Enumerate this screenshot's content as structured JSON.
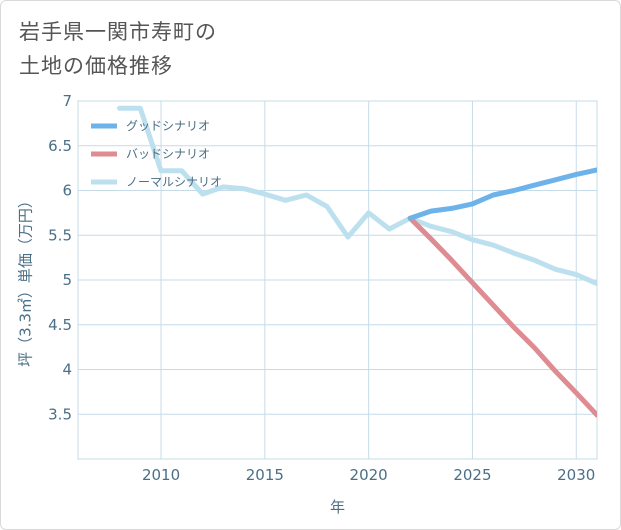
{
  "title_lines": [
    "岩手県一関市寿町の",
    "土地の価格推移"
  ],
  "colors": {
    "good": "#6db3ea",
    "bad": "#de8b91",
    "normal": "#bde0ef",
    "grid": "#c6dbe8",
    "axis_text": "#4a6f86"
  },
  "chart_data": {
    "type": "line",
    "title": "岩手県一関市寿町の土地の価格推移",
    "xlabel": "年",
    "ylabel": "坪（3.3㎡）単価（万円）",
    "xlim": [
      2006,
      2031
    ],
    "ylim": [
      3,
      7
    ],
    "x_ticks": [
      2010,
      2015,
      2020,
      2025,
      2030
    ],
    "y_ticks": [
      3.5,
      4,
      4.5,
      5,
      5.5,
      6,
      6.5,
      7
    ],
    "y_tick_labels": [
      "3.5",
      "4",
      "4.5",
      "5",
      "5.5",
      "6",
      "6.5",
      "7"
    ],
    "legend_position": "top-left",
    "series": [
      {
        "name": "グッドシナリオ",
        "key": "good",
        "x": [
          2022,
          2023,
          2024,
          2025,
          2026,
          2027,
          2028,
          2029,
          2030,
          2031
        ],
        "values": [
          5.69,
          5.77,
          5.8,
          5.85,
          5.95,
          6.0,
          6.06,
          6.12,
          6.18,
          6.23
        ]
      },
      {
        "name": "バッドシナリオ",
        "key": "bad",
        "x": [
          2022,
          2023,
          2024,
          2025,
          2026,
          2027,
          2028,
          2029,
          2030,
          2031
        ],
        "values": [
          5.69,
          5.46,
          5.22,
          4.97,
          4.72,
          4.47,
          4.24,
          3.98,
          3.74,
          3.49
        ]
      },
      {
        "name": "ノーマルシナリオ",
        "key": "normal",
        "x": [
          2008,
          2009,
          2010,
          2011,
          2012,
          2013,
          2014,
          2015,
          2016,
          2017,
          2018,
          2019,
          2020,
          2021,
          2022,
          2023,
          2024,
          2025,
          2026,
          2027,
          2028,
          2029,
          2030,
          2031
        ],
        "values": [
          6.92,
          6.92,
          6.22,
          6.22,
          5.96,
          6.04,
          6.02,
          5.96,
          5.89,
          5.95,
          5.82,
          5.48,
          5.75,
          5.57,
          5.69,
          5.6,
          5.54,
          5.45,
          5.39,
          5.3,
          5.22,
          5.12,
          5.06,
          4.96
        ]
      }
    ]
  }
}
